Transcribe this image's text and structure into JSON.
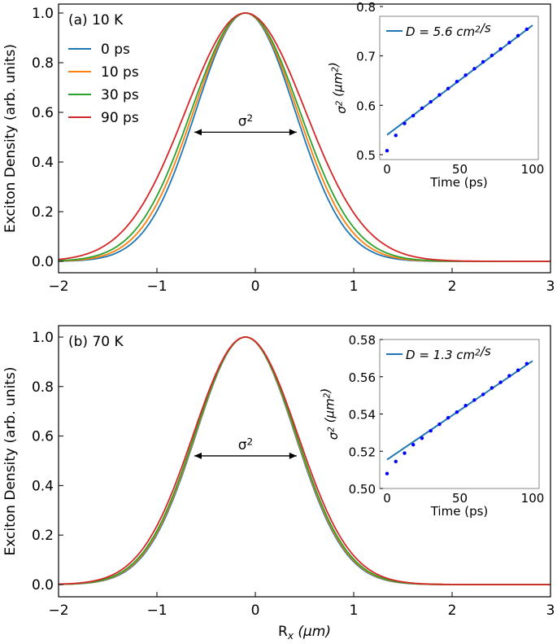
{
  "chart_data": [
    {
      "type": "line",
      "panel": "a",
      "title": "(a) 10 K",
      "xlabel": "R_x (μm)",
      "ylabel": "Exciton Density  (arb. units)",
      "xlim": [
        -2,
        3
      ],
      "ylim": [
        -0.05,
        1.05
      ],
      "xticks": [
        -2,
        -1,
        0,
        1,
        2,
        3
      ],
      "yticks": [
        0.0,
        0.2,
        0.4,
        0.6,
        0.8,
        1.0
      ],
      "center": -0.1,
      "annotation": "σ²",
      "legend_position": "upper-left",
      "series": [
        {
          "name": "0 ps",
          "color": "#1f77b4",
          "sigma2": 0.508
        },
        {
          "name": "10 ps",
          "color": "#ff7f0e",
          "sigma2": 0.555
        },
        {
          "name": "30 ps",
          "color": "#2ca02c",
          "sigma2": 0.607
        },
        {
          "name": "90 ps",
          "color": "#d62728",
          "sigma2": 0.741
        }
      ],
      "inset": {
        "type": "scatter+line",
        "xlabel": "Time (ps)",
        "ylabel": "σ² (μm²)",
        "xlim": [
          -4,
          104
        ],
        "ylim": [
          0.49,
          0.8
        ],
        "xticks": [
          0,
          50,
          100
        ],
        "yticks": [
          0.5,
          0.6,
          0.7,
          0.8
        ],
        "legend": "D = 5.6 cm²/s",
        "fit": [
          [
            0,
            0.54
          ],
          [
            100,
            0.762
          ]
        ],
        "x": [
          0,
          6,
          12,
          18,
          24,
          30,
          36,
          42,
          48,
          54,
          60,
          66,
          72,
          78,
          84,
          90,
          96
        ],
        "y": [
          0.508,
          0.539,
          0.563,
          0.579,
          0.594,
          0.607,
          0.621,
          0.634,
          0.648,
          0.661,
          0.674,
          0.688,
          0.701,
          0.714,
          0.727,
          0.741,
          0.754
        ]
      }
    },
    {
      "type": "line",
      "panel": "b",
      "title": "(b) 70 K",
      "xlabel": "R_x (μm)",
      "ylabel": "Exciton Density  (arb. units)",
      "xlim": [
        -2,
        3
      ],
      "ylim": [
        -0.05,
        1.05
      ],
      "xticks": [
        -2,
        -1,
        0,
        1,
        2,
        3
      ],
      "yticks": [
        0.0,
        0.2,
        0.4,
        0.6,
        0.8,
        1.0
      ],
      "center": -0.1,
      "annotation": "σ²",
      "series": [
        {
          "name": "0 ps",
          "color": "#1f77b4",
          "sigma2": 0.508
        },
        {
          "name": "10 ps",
          "color": "#ff7f0e",
          "sigma2": 0.519
        },
        {
          "name": "30 ps",
          "color": "#2ca02c",
          "sigma2": 0.531
        },
        {
          "name": "90 ps",
          "color": "#d62728",
          "sigma2": 0.5635
        }
      ],
      "inset": {
        "type": "scatter+line",
        "xlabel": "Time (ps)",
        "ylabel": "σ² (μm²)",
        "xlim": [
          -4,
          104
        ],
        "ylim": [
          0.5,
          0.58
        ],
        "xticks": [
          0,
          50,
          100
        ],
        "yticks": [
          0.5,
          0.52,
          0.54,
          0.56,
          0.58
        ],
        "legend": "D = 1.3 cm²/s",
        "fit": [
          [
            0,
            0.5155
          ],
          [
            100,
            0.5685
          ]
        ],
        "x": [
          0,
          6,
          12,
          18,
          24,
          30,
          36,
          42,
          48,
          54,
          60,
          66,
          72,
          78,
          84,
          90,
          96
        ],
        "y": [
          0.508,
          0.5145,
          0.519,
          0.5235,
          0.527,
          0.531,
          0.5345,
          0.538,
          0.541,
          0.5445,
          0.5475,
          0.5505,
          0.554,
          0.557,
          0.5605,
          0.5635,
          0.567
        ]
      }
    }
  ]
}
